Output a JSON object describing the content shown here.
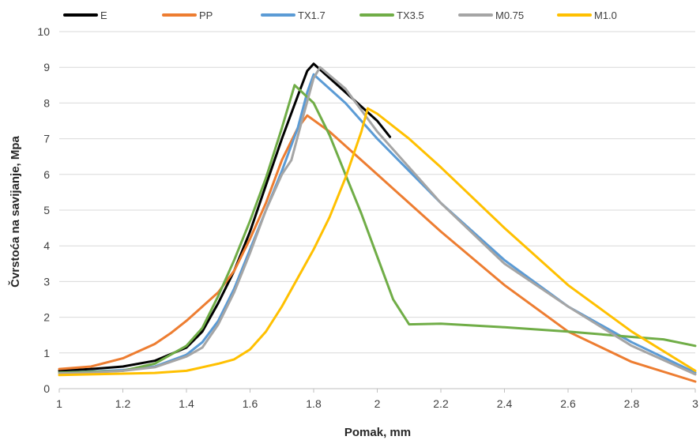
{
  "chart_data": {
    "type": "line",
    "title": "",
    "xlabel": "Pomak, mm",
    "ylabel": "Čvrstoća na savijanje, Mpa",
    "xlim": [
      1,
      3
    ],
    "ylim": [
      0,
      10
    ],
    "x_ticks": [
      1,
      1.2,
      1.4,
      1.6,
      1.8,
      2,
      2.2,
      2.4,
      2.6,
      2.8,
      3
    ],
    "x_tick_labels": [
      "1",
      "1.2",
      "1.4",
      "1.6",
      "1.8",
      "2",
      "2.2",
      "2.4",
      "2.6",
      "2.8",
      "3"
    ],
    "y_ticks": [
      0,
      1,
      2,
      3,
      4,
      5,
      6,
      7,
      8,
      9,
      10
    ],
    "y_tick_labels": [
      "0",
      "1",
      "2",
      "3",
      "4",
      "5",
      "6",
      "7",
      "8",
      "9",
      "10"
    ],
    "grid": "horizontal",
    "legend_position": "top",
    "series": [
      {
        "name": "E",
        "color": "#000000",
        "points": [
          [
            1.0,
            0.5
          ],
          [
            1.1,
            0.55
          ],
          [
            1.2,
            0.62
          ],
          [
            1.3,
            0.78
          ],
          [
            1.4,
            1.15
          ],
          [
            1.45,
            1.6
          ],
          [
            1.5,
            2.4
          ],
          [
            1.55,
            3.3
          ],
          [
            1.6,
            4.4
          ],
          [
            1.65,
            5.7
          ],
          [
            1.7,
            7.0
          ],
          [
            1.75,
            8.2
          ],
          [
            1.78,
            8.9
          ],
          [
            1.8,
            9.1
          ],
          [
            1.85,
            8.7
          ],
          [
            1.9,
            8.3
          ],
          [
            1.95,
            7.9
          ],
          [
            2.0,
            7.5
          ],
          [
            2.04,
            7.05
          ]
        ]
      },
      {
        "name": "PP",
        "color": "#ed7d31",
        "points": [
          [
            1.0,
            0.55
          ],
          [
            1.1,
            0.62
          ],
          [
            1.2,
            0.85
          ],
          [
            1.3,
            1.25
          ],
          [
            1.35,
            1.55
          ],
          [
            1.4,
            1.9
          ],
          [
            1.5,
            2.7
          ],
          [
            1.55,
            3.3
          ],
          [
            1.6,
            4.2
          ],
          [
            1.65,
            5.2
          ],
          [
            1.7,
            6.4
          ],
          [
            1.75,
            7.3
          ],
          [
            1.78,
            7.65
          ],
          [
            1.85,
            7.2
          ],
          [
            1.9,
            6.8
          ],
          [
            2.0,
            6.0
          ],
          [
            2.2,
            4.4
          ],
          [
            2.4,
            2.9
          ],
          [
            2.6,
            1.6
          ],
          [
            2.8,
            0.75
          ],
          [
            3.0,
            0.2
          ]
        ]
      },
      {
        "name": "TX1.7",
        "color": "#5b9bd5",
        "points": [
          [
            1.0,
            0.45
          ],
          [
            1.1,
            0.48
          ],
          [
            1.2,
            0.52
          ],
          [
            1.3,
            0.62
          ],
          [
            1.4,
            0.95
          ],
          [
            1.45,
            1.3
          ],
          [
            1.5,
            1.9
          ],
          [
            1.55,
            2.8
          ],
          [
            1.6,
            3.9
          ],
          [
            1.65,
            5.0
          ],
          [
            1.7,
            6.1
          ],
          [
            1.75,
            7.3
          ],
          [
            1.78,
            8.3
          ],
          [
            1.8,
            8.8
          ],
          [
            1.9,
            8.0
          ],
          [
            2.0,
            7.0
          ],
          [
            2.2,
            5.2
          ],
          [
            2.4,
            3.6
          ],
          [
            2.6,
            2.3
          ],
          [
            2.8,
            1.3
          ],
          [
            3.0,
            0.45
          ]
        ]
      },
      {
        "name": "TX3.5",
        "color": "#70ad47",
        "points": [
          [
            1.0,
            0.45
          ],
          [
            1.1,
            0.47
          ],
          [
            1.2,
            0.5
          ],
          [
            1.3,
            0.7
          ],
          [
            1.4,
            1.2
          ],
          [
            1.45,
            1.7
          ],
          [
            1.5,
            2.6
          ],
          [
            1.55,
            3.6
          ],
          [
            1.6,
            4.7
          ],
          [
            1.65,
            5.9
          ],
          [
            1.7,
            7.3
          ],
          [
            1.74,
            8.5
          ],
          [
            1.8,
            8.0
          ],
          [
            1.85,
            7.1
          ],
          [
            1.9,
            6.0
          ],
          [
            1.95,
            4.9
          ],
          [
            2.0,
            3.7
          ],
          [
            2.05,
            2.5
          ],
          [
            2.1,
            1.8
          ],
          [
            2.2,
            1.82
          ],
          [
            2.4,
            1.72
          ],
          [
            2.6,
            1.6
          ],
          [
            2.8,
            1.45
          ],
          [
            2.9,
            1.38
          ],
          [
            3.0,
            1.2
          ]
        ]
      },
      {
        "name": "M0.75",
        "color": "#a5a5a5",
        "points": [
          [
            1.0,
            0.43
          ],
          [
            1.1,
            0.45
          ],
          [
            1.2,
            0.5
          ],
          [
            1.3,
            0.6
          ],
          [
            1.4,
            0.9
          ],
          [
            1.45,
            1.15
          ],
          [
            1.5,
            1.8
          ],
          [
            1.55,
            2.7
          ],
          [
            1.6,
            3.8
          ],
          [
            1.65,
            5.0
          ],
          [
            1.7,
            6.0
          ],
          [
            1.73,
            6.4
          ],
          [
            1.76,
            7.4
          ],
          [
            1.8,
            8.7
          ],
          [
            1.82,
            9.0
          ],
          [
            1.9,
            8.4
          ],
          [
            2.0,
            7.2
          ],
          [
            2.2,
            5.2
          ],
          [
            2.4,
            3.5
          ],
          [
            2.6,
            2.3
          ],
          [
            2.8,
            1.2
          ],
          [
            3.0,
            0.4
          ]
        ]
      },
      {
        "name": "M1.0",
        "color": "#ffc000",
        "points": [
          [
            1.0,
            0.38
          ],
          [
            1.1,
            0.4
          ],
          [
            1.2,
            0.42
          ],
          [
            1.3,
            0.44
          ],
          [
            1.4,
            0.5
          ],
          [
            1.5,
            0.7
          ],
          [
            1.55,
            0.82
          ],
          [
            1.6,
            1.1
          ],
          [
            1.65,
            1.6
          ],
          [
            1.7,
            2.3
          ],
          [
            1.75,
            3.1
          ],
          [
            1.8,
            3.9
          ],
          [
            1.85,
            4.8
          ],
          [
            1.9,
            5.9
          ],
          [
            1.95,
            7.2
          ],
          [
            1.97,
            7.85
          ],
          [
            2.0,
            7.7
          ],
          [
            2.1,
            7.0
          ],
          [
            2.2,
            6.2
          ],
          [
            2.4,
            4.5
          ],
          [
            2.6,
            2.9
          ],
          [
            2.8,
            1.6
          ],
          [
            3.0,
            0.5
          ]
        ]
      }
    ]
  }
}
